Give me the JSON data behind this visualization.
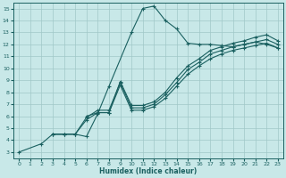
{
  "xlabel": "Humidex (Indice chaleur)",
  "background_color": "#c8e8e8",
  "grid_color": "#a0c8c8",
  "line_color": "#1a6060",
  "xlim": [
    -0.5,
    23.5
  ],
  "ylim": [
    2.5,
    15.5
  ],
  "xticks": [
    0,
    1,
    2,
    3,
    4,
    5,
    6,
    7,
    8,
    9,
    10,
    11,
    12,
    13,
    14,
    15,
    16,
    17,
    18,
    19,
    20,
    21,
    22,
    23
  ],
  "yticks": [
    3,
    4,
    5,
    6,
    7,
    8,
    9,
    10,
    11,
    12,
    13,
    14,
    15
  ],
  "line1_x": [
    0,
    2,
    3,
    4,
    5,
    6,
    7,
    8,
    10,
    11,
    12,
    13,
    14,
    15,
    16,
    17,
    18,
    19,
    20,
    21,
    22,
    23
  ],
  "line1_y": [
    3,
    3.7,
    4.5,
    4.5,
    4.5,
    4.3,
    6.2,
    8.5,
    13.0,
    15.0,
    15.2,
    14.0,
    13.3,
    12.1,
    12.0,
    12.0,
    11.9,
    11.8,
    12.0,
    12.2,
    12.0,
    11.7
  ],
  "line2_x": [
    3,
    4,
    5,
    6,
    7,
    8,
    9,
    10,
    11,
    12,
    13,
    14,
    15,
    16,
    17,
    18,
    19,
    20,
    21,
    22,
    23
  ],
  "line2_y": [
    4.5,
    4.5,
    4.5,
    5.7,
    6.3,
    6.3,
    8.6,
    6.5,
    6.5,
    6.8,
    7.5,
    8.5,
    9.5,
    10.2,
    10.8,
    11.2,
    11.5,
    11.7,
    11.9,
    12.1,
    11.7
  ],
  "line3_x": [
    3,
    4,
    5,
    6,
    7,
    8,
    9,
    10,
    11,
    12,
    13,
    14,
    15,
    16,
    17,
    18,
    19,
    20,
    21,
    22,
    23
  ],
  "line3_y": [
    4.5,
    4.5,
    4.5,
    5.9,
    6.5,
    6.5,
    8.8,
    6.7,
    6.7,
    7.0,
    7.8,
    8.8,
    9.9,
    10.5,
    11.2,
    11.5,
    11.8,
    12.0,
    12.2,
    12.4,
    12.0
  ],
  "line4_x": [
    6,
    7,
    8,
    9,
    10,
    11,
    12,
    13,
    14,
    15,
    16,
    17,
    18,
    19,
    20,
    21,
    22,
    23
  ],
  "line4_y": [
    6.0,
    6.3,
    6.3,
    8.9,
    6.9,
    6.9,
    7.2,
    8.0,
    9.2,
    10.2,
    10.8,
    11.5,
    11.8,
    12.1,
    12.3,
    12.6,
    12.8,
    12.3
  ]
}
